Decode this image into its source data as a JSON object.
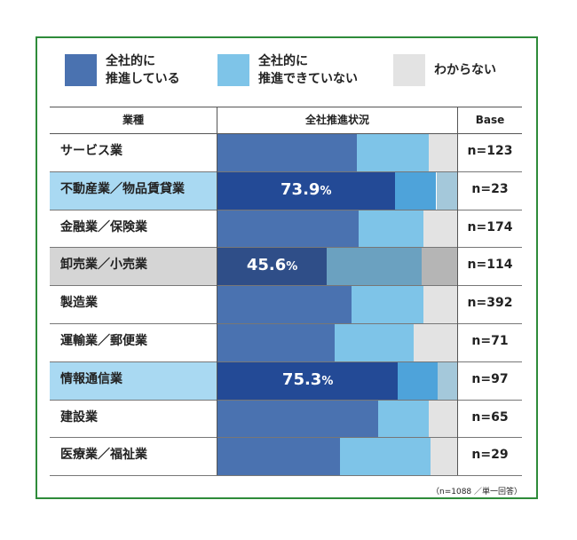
{
  "legend": [
    {
      "label": "全社的に\n推進している",
      "color": "#4a72b0"
    },
    {
      "label": "全社的に\n推進できていない",
      "color": "#7ec4e8"
    },
    {
      "label": "わからない",
      "color": "#e3e3e3"
    }
  ],
  "table": {
    "col_headers": [
      "業種",
      "全社推進状況",
      "Base"
    ]
  },
  "chart_data": {
    "type": "bar",
    "orientation": "horizontal",
    "stacked": true,
    "normalized": true,
    "series_names": [
      "全社的に推進している",
      "全社的に推進できていない",
      "わからない"
    ],
    "categories": [
      "サービス業",
      "不動産業／物品賃貸業",
      "金融業／保険業",
      "卸売業／小売業",
      "製造業",
      "運輸業／郵便業",
      "情報通信業",
      "建設業",
      "医療業／福祉業"
    ],
    "rows": [
      {
        "category": "サービス業",
        "base": "n=123",
        "values": [
          58,
          30,
          12
        ],
        "highlight": false
      },
      {
        "category": "不動産業／物品賃貸業",
        "base": "n=23",
        "values": [
          73.9,
          17.4,
          8.7
        ],
        "highlight": true,
        "label_value": "73.9",
        "label_unit": "%",
        "highlight_colors": [
          "#234a96",
          "#4ea3da",
          "#a4c8da"
        ],
        "label_bg": "#a9d9f2"
      },
      {
        "category": "金融業／保険業",
        "base": "n=174",
        "values": [
          59,
          27,
          14
        ],
        "highlight": false
      },
      {
        "category": "卸売業／小売業",
        "base": "n=114",
        "values": [
          45.6,
          39.5,
          14.9
        ],
        "highlight": true,
        "label_value": "45.6",
        "label_unit": "%",
        "highlight_colors": [
          "#2f4e88",
          "#6ba1c0",
          "#b5b5b5"
        ],
        "label_bg": "#d5d5d5"
      },
      {
        "category": "製造業",
        "base": "n=392",
        "values": [
          56,
          30,
          14
        ],
        "highlight": false
      },
      {
        "category": "運輸業／郵便業",
        "base": "n=71",
        "values": [
          49,
          33,
          18
        ],
        "highlight": false
      },
      {
        "category": "情報通信業",
        "base": "n=97",
        "values": [
          75.3,
          16.5,
          8.2
        ],
        "highlight": true,
        "label_value": "75.3",
        "label_unit": "%",
        "highlight_colors": [
          "#234a96",
          "#4ea3da",
          "#a4c8da"
        ],
        "label_bg": "#a9d9f2"
      },
      {
        "category": "建設業",
        "base": "n=65",
        "values": [
          67,
          21,
          12
        ],
        "highlight": false
      },
      {
        "category": "医療業／福祉業",
        "base": "n=29",
        "values": [
          51,
          38,
          11
        ],
        "highlight": false
      }
    ],
    "xlim": [
      0,
      100
    ],
    "colors": {
      "promoted": "#4a72b0",
      "not_promoted": "#7ec4e8",
      "unknown": "#e3e3e3"
    }
  },
  "footnote": "（n=1088 ／単一回答）"
}
